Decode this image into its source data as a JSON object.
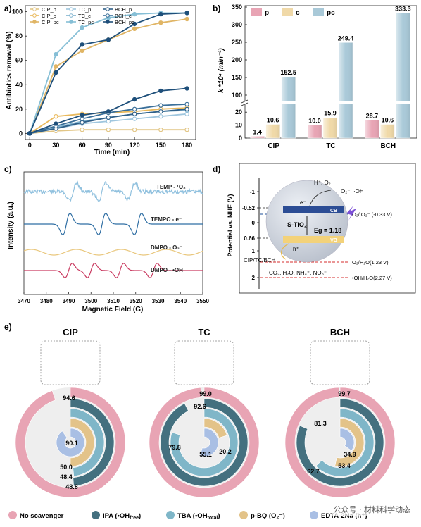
{
  "watermark": "公众号 · 材料科学动态",
  "chart_data": [
    {
      "panel": "a)",
      "type": "line",
      "xlabel": "Time (min)",
      "ylabel": "Antibiotics removal (%)",
      "xticks": [
        0,
        30,
        60,
        90,
        120,
        150,
        180
      ],
      "yticks": [
        0,
        20,
        40,
        60,
        80,
        100
      ],
      "xlim": [
        -5,
        190
      ],
      "ylim": [
        -5,
        105
      ],
      "legend": "top-left",
      "series": [
        {
          "name": "CIP_p",
          "color": "#e2c686",
          "marker": "open",
          "x": [
            0,
            30,
            60,
            90,
            120,
            150,
            180
          ],
          "y": [
            0,
            2,
            3,
            3,
            3,
            3,
            3
          ]
        },
        {
          "name": "CIP_c",
          "color": "#e9b95c",
          "marker": "open",
          "x": [
            0,
            30,
            60,
            90,
            120,
            150,
            180
          ],
          "y": [
            0,
            14,
            16,
            17,
            18,
            20,
            21
          ]
        },
        {
          "name": "CIP_pc",
          "color": "#e0b565",
          "marker": "filled",
          "x": [
            0,
            30,
            60,
            90,
            120,
            150,
            180
          ],
          "y": [
            0,
            55,
            68,
            77,
            86,
            91,
            94
          ]
        },
        {
          "name": "TC_p",
          "color": "#9fc6de",
          "marker": "open",
          "x": [
            0,
            30,
            60,
            90,
            120,
            150,
            180
          ],
          "y": [
            0,
            4,
            8,
            10,
            12,
            14,
            16
          ]
        },
        {
          "name": "TC_c",
          "color": "#7fb3cf",
          "marker": "open",
          "x": [
            0,
            30,
            60,
            90,
            120,
            150,
            180
          ],
          "y": [
            0,
            5,
            10,
            13,
            16,
            18,
            19
          ]
        },
        {
          "name": "TC_pc",
          "color": "#86bfd6",
          "marker": "filled",
          "x": [
            0,
            30,
            60,
            90,
            120,
            150,
            180
          ],
          "y": [
            0,
            65,
            87,
            95,
            98,
            99,
            99
          ]
        },
        {
          "name": "BCH_p",
          "color": "#2f5f88",
          "marker": "open",
          "x": [
            0,
            30,
            60,
            90,
            120,
            150,
            180
          ],
          "y": [
            0,
            4,
            9,
            13,
            16,
            18,
            20
          ]
        },
        {
          "name": "BCH_c",
          "color": "#3a6f99",
          "marker": "open",
          "x": [
            0,
            30,
            60,
            90,
            120,
            150,
            180
          ],
          "y": [
            0,
            6,
            12,
            17,
            20,
            23,
            24
          ]
        },
        {
          "name": "BCH_pc",
          "color": "#1e4f7a",
          "marker": "filled",
          "x": [
            0,
            30,
            60,
            90,
            120,
            150,
            180
          ],
          "y": [
            0,
            50,
            73,
            77,
            90,
            98,
            99
          ]
        },
        {
          "name": "",
          "color": "#1e4f7a",
          "marker": "filled",
          "x": [
            0,
            30,
            60,
            90,
            120,
            150,
            180
          ],
          "y": [
            0,
            8,
            15,
            18,
            28,
            35,
            37
          ]
        }
      ]
    },
    {
      "panel": "b)",
      "type": "bar",
      "ylabel": "k *10⁴ (min⁻¹)",
      "categories": [
        "CIP",
        "TC",
        "BCH"
      ],
      "axis_break": true,
      "yticks_lower": [
        0,
        10,
        20
      ],
      "yticks_upper": [
        100,
        150,
        200,
        250,
        300,
        350
      ],
      "legend": "top-left",
      "series": [
        {
          "name": "p",
          "color": "#e8a4b4",
          "values": [
            1.4,
            10.0,
            28.7
          ],
          "labels": [
            "1.4",
            "10.0",
            "28.7"
          ]
        },
        {
          "name": "c",
          "color": "#f0d9a8",
          "values": [
            10.6,
            15.9,
            10.6
          ],
          "labels": [
            "10.6",
            "15.9",
            "10.6"
          ]
        },
        {
          "name": "pc",
          "color": "#a9c9d8",
          "values": [
            152.5,
            249.4,
            333.3
          ],
          "labels": [
            "152.5",
            "249.4",
            "333.3"
          ]
        }
      ]
    },
    {
      "panel": "c)",
      "type": "line",
      "xlabel": "Magnetic Field (G)",
      "ylabel": "Intensity (a.u.)",
      "xticks": [
        3470,
        3480,
        3490,
        3500,
        3510,
        3520,
        3530,
        3540,
        3550
      ],
      "xlim": [
        3470,
        3550
      ],
      "series": [
        {
          "name": "TEMP - ¹O₂",
          "color": "#8fc0de",
          "kind": "triplet-noisy",
          "centers": [
            3492,
            3505,
            3518
          ]
        },
        {
          "name": "TEMPO - e⁻",
          "color": "#2f6ea3",
          "kind": "triplet",
          "centers": [
            3489,
            3505,
            3521
          ]
        },
        {
          "name": "DMPO - O₂⁻",
          "color": "#e9c77d",
          "kind": "weak",
          "centers": []
        },
        {
          "name": "DMPO - •OH",
          "color": "#c93a60",
          "kind": "quartet",
          "centers": [
            3490,
            3500,
            3513,
            3528
          ]
        }
      ]
    },
    {
      "panel": "d)",
      "type": "diagram",
      "ylabel": "Potential vs. NHE (V)",
      "yticks": [
        "-1",
        "-0.52",
        "0",
        "0.66",
        "1",
        "2"
      ],
      "cb_label": "CB",
      "vb_label": "VB",
      "material": "S-TiO₂",
      "bandgap": "Eg = 1.18",
      "labels": [
        "H⁺, O₂",
        "O₂⁻, ·OH",
        "e⁻",
        "h⁺",
        "CIP/TC/BCH",
        "CO₂, H₂O, NH₄⁺, NO₃⁻"
      ],
      "levels": [
        {
          "label": "O₂/ O₂⁻ (-0.33 V)",
          "value": -0.33,
          "color": "#1e4f9a"
        },
        {
          "label": "O₂/H₂O(1.23 V)",
          "value": 1.23,
          "color": "#d62d2d"
        },
        {
          "label": "•OH/H₂O(2.27 V)",
          "value": 2.27,
          "color": "#d62d2d"
        }
      ]
    },
    {
      "panel": "e)",
      "type": "radial-bar",
      "legend": "bottom",
      "scavengers": [
        {
          "name": "No scavenger",
          "color": "#e8a4b4"
        },
        {
          "name": "IPA (•OH",
          "sub": "free",
          "tail": ")",
          "color": "#44707f"
        },
        {
          "name": "TBA (•OH",
          "sub": "total",
          "tail": ")",
          "color": "#7fb6c8"
        },
        {
          "name": "p-BQ (O₂⁻)",
          "color": "#e3c389"
        },
        {
          "name": "EDTA-2Na (h⁺)",
          "color": "#a9bfe4"
        }
      ],
      "groups": [
        {
          "name": "CIP",
          "values": [
            94.6,
            48.8,
            48.4,
            50.0,
            90.1
          ],
          "labels": [
            "94.6",
            "48.8",
            "48.4",
            "50.0",
            "90.1"
          ]
        },
        {
          "name": "TC",
          "values": [
            99.0,
            92.6,
            79.8,
            20.2,
            55.1
          ],
          "labels": [
            "99.0",
            "92.6",
            "79.8",
            "20.2",
            "55.1"
          ]
        },
        {
          "name": "BCH",
          "values": [
            99.7,
            81.3,
            62.7,
            53.4,
            34.9
          ],
          "labels": [
            "99.7",
            "81.3",
            "62.7",
            "53.4",
            "34.9"
          ]
        }
      ]
    }
  ]
}
